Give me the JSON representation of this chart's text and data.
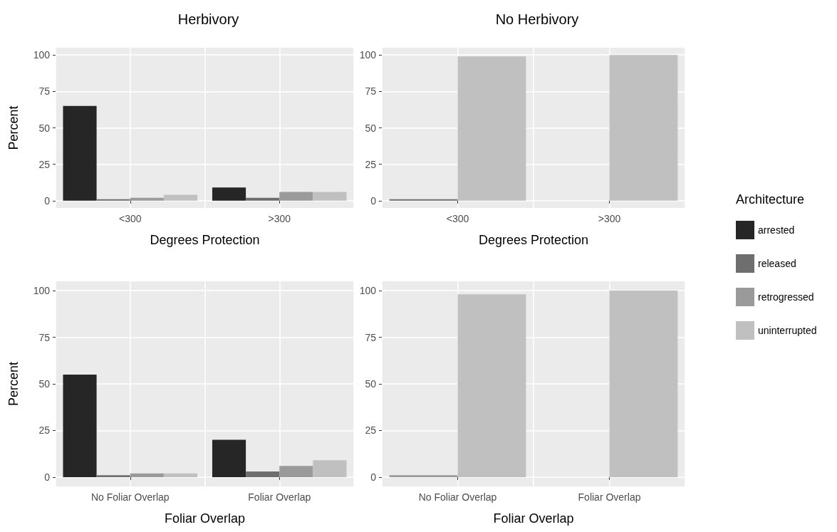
{
  "chart_data": [
    {
      "type": "bar",
      "title": "Herbivory",
      "xlabel": "Degrees Protection",
      "ylabel": "Percent",
      "categories": [
        "<300",
        ">300"
      ],
      "ylim": [
        -5,
        105
      ],
      "yticks": [
        0,
        25,
        50,
        75,
        100
      ],
      "grid": true,
      "legend": "right",
      "legend_title": "Architecture",
      "series": [
        {
          "name": "arrested",
          "color": "#262626",
          "values": [
            65,
            9
          ]
        },
        {
          "name": "released",
          "color": "#6e6e6e",
          "values": [
            1,
            2
          ]
        },
        {
          "name": "retrogressed",
          "color": "#9a9a9a",
          "values": [
            2,
            6
          ]
        },
        {
          "name": "uninterrupted",
          "color": "#c0c0c0",
          "values": [
            4,
            6
          ]
        }
      ]
    },
    {
      "type": "bar",
      "title": "No Herbivory",
      "xlabel": "Degrees Protection",
      "categories": [
        "<300",
        ">300"
      ],
      "ylim": [
        -5,
        105
      ],
      "yticks": [
        0,
        25,
        50,
        75,
        100
      ],
      "grid": true,
      "series": [
        {
          "color": "#6e6e6e",
          "values": [
            1,
            0
          ]
        },
        {
          "color": "#c0c0c0",
          "values": [
            99,
            100
          ]
        }
      ]
    },
    {
      "type": "bar",
      "xlabel": "Foliar Overlap",
      "ylabel": "Percent",
      "categories": [
        "No Foliar Overlap",
        "Foliar Overlap"
      ],
      "ylim": [
        -5,
        105
      ],
      "yticks": [
        0,
        25,
        50,
        75,
        100
      ],
      "grid": true,
      "series": [
        {
          "color": "#262626",
          "values": [
            55,
            20
          ]
        },
        {
          "color": "#6e6e6e",
          "values": [
            1,
            3
          ]
        },
        {
          "color": "#9a9a9a",
          "values": [
            2,
            6
          ]
        },
        {
          "color": "#c0c0c0",
          "values": [
            2,
            9
          ]
        }
      ]
    },
    {
      "type": "bar",
      "xlabel": "Foliar Overlap",
      "categories": [
        "No Foliar Overlap",
        "Foliar Overlap"
      ],
      "ylim": [
        -5,
        105
      ],
      "yticks": [
        0,
        25,
        50,
        75,
        100
      ],
      "grid": true,
      "series": [
        {
          "color": "#9a9a9a",
          "values": [
            1,
            0
          ]
        },
        {
          "color": "#c0c0c0",
          "values": [
            98,
            100
          ]
        }
      ]
    }
  ]
}
